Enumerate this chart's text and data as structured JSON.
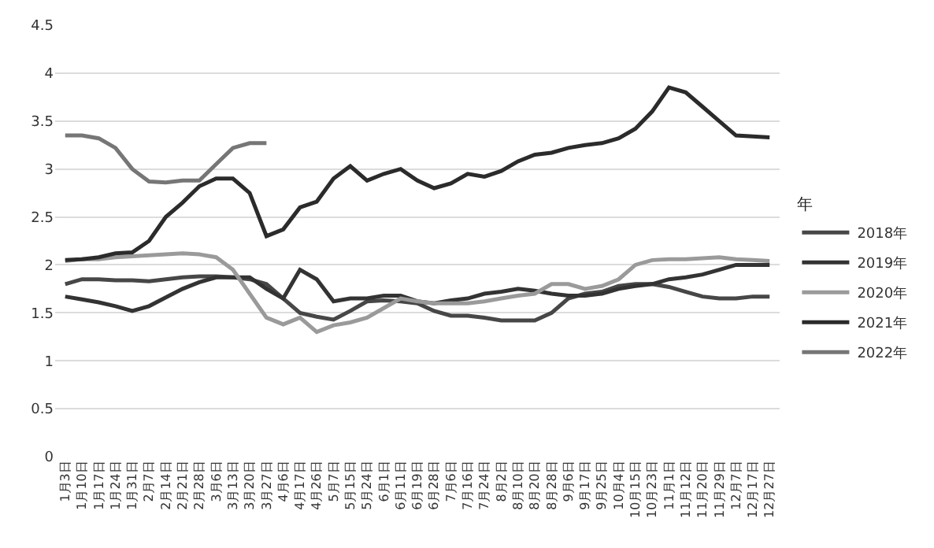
{
  "chart_data": {
    "type": "line",
    "categories": [
      "1月3日",
      "1月10日",
      "1月17日",
      "1月24日",
      "1月31日",
      "2月7日",
      "2月14日",
      "2月21日",
      "2月28日",
      "3月6日",
      "3月13日",
      "3月20日",
      "3月27日",
      "4月6日",
      "4月17日",
      "4月26日",
      "5月7日",
      "5月15日",
      "5月24日",
      "6月1日",
      "6月11日",
      "6月19日",
      "6月28日",
      "7月6日",
      "7月16日",
      "7月24日",
      "8月2日",
      "8月10日",
      "8月20日",
      "8月28日",
      "9月6日",
      "9月17日",
      "9月25日",
      "10月4日",
      "10月15日",
      "10月23日",
      "11月1日",
      "11月12日",
      "11月20日",
      "11月29日",
      "12月7日",
      "12月17日",
      "12月27日"
    ],
    "series": [
      {
        "name": "2018年",
        "color": "#474747",
        "values": [
          1.8,
          1.85,
          1.85,
          1.84,
          1.84,
          1.83,
          1.85,
          1.87,
          1.88,
          1.88,
          1.87,
          1.85,
          1.8,
          1.65,
          1.5,
          1.46,
          1.43,
          1.52,
          1.62,
          1.63,
          1.62,
          1.6,
          1.52,
          1.47,
          1.47,
          1.45,
          1.42,
          1.42,
          1.42,
          1.5,
          1.65,
          1.7,
          1.72,
          1.78,
          1.8,
          1.8,
          1.77,
          1.72,
          1.67,
          1.65,
          1.65,
          1.67,
          1.67
        ]
      },
      {
        "name": "2019年",
        "color": "#333333",
        "values": [
          1.67,
          1.64,
          1.61,
          1.57,
          1.52,
          1.57,
          1.66,
          1.75,
          1.82,
          1.87,
          1.87,
          1.87,
          1.75,
          1.65,
          1.95,
          1.85,
          1.62,
          1.65,
          1.65,
          1.68,
          1.68,
          1.62,
          1.6,
          1.63,
          1.65,
          1.7,
          1.72,
          1.75,
          1.73,
          1.7,
          1.68,
          1.68,
          1.7,
          1.75,
          1.78,
          1.8,
          1.85,
          1.87,
          1.9,
          1.95,
          2.0,
          2.0,
          2.0
        ]
      },
      {
        "name": "2020年",
        "color": "#9a9a9a",
        "values": [
          2.04,
          2.06,
          2.06,
          2.08,
          2.09,
          2.1,
          2.11,
          2.12,
          2.11,
          2.08,
          1.95,
          1.7,
          1.45,
          1.38,
          1.45,
          1.3,
          1.37,
          1.4,
          1.45,
          1.55,
          1.65,
          1.62,
          1.6,
          1.6,
          1.6,
          1.62,
          1.65,
          1.68,
          1.7,
          1.8,
          1.8,
          1.75,
          1.78,
          1.85,
          2.0,
          2.05,
          2.06,
          2.06,
          2.07,
          2.08,
          2.06,
          2.05,
          2.04
        ]
      },
      {
        "name": "2021年",
        "color": "#2b2b2b",
        "values": [
          2.05,
          2.06,
          2.08,
          2.12,
          2.13,
          2.25,
          2.5,
          2.65,
          2.82,
          2.9,
          2.9,
          2.75,
          2.3,
          2.37,
          2.6,
          2.66,
          2.9,
          3.03,
          2.88,
          2.95,
          3.0,
          2.88,
          2.8,
          2.85,
          2.95,
          2.92,
          2.98,
          3.08,
          3.15,
          3.17,
          3.22,
          3.25,
          3.27,
          3.32,
          3.42,
          3.6,
          3.85,
          3.8,
          3.65,
          3.5,
          3.35,
          3.34,
          3.33
        ]
      },
      {
        "name": "2022年",
        "color": "#767676",
        "values": [
          3.35,
          3.35,
          3.32,
          3.22,
          3.0,
          2.87,
          2.86,
          2.88,
          2.88,
          3.05,
          3.22,
          3.27,
          3.27,
          null,
          null,
          null,
          null,
          null,
          null,
          null,
          null,
          null,
          null,
          null,
          null,
          null,
          null,
          null,
          null,
          null,
          null,
          null,
          null,
          null,
          null,
          null,
          null,
          null,
          null,
          null,
          null,
          null,
          null
        ]
      }
    ],
    "legend_title": "年",
    "ylim": [
      0,
      4.5
    ],
    "yticks": [
      0,
      0.5,
      1,
      1.5,
      2,
      2.5,
      3,
      3.5,
      4,
      4.5
    ],
    "grid": "y",
    "legend": "right",
    "marker": "none",
    "line_style": "solid"
  }
}
